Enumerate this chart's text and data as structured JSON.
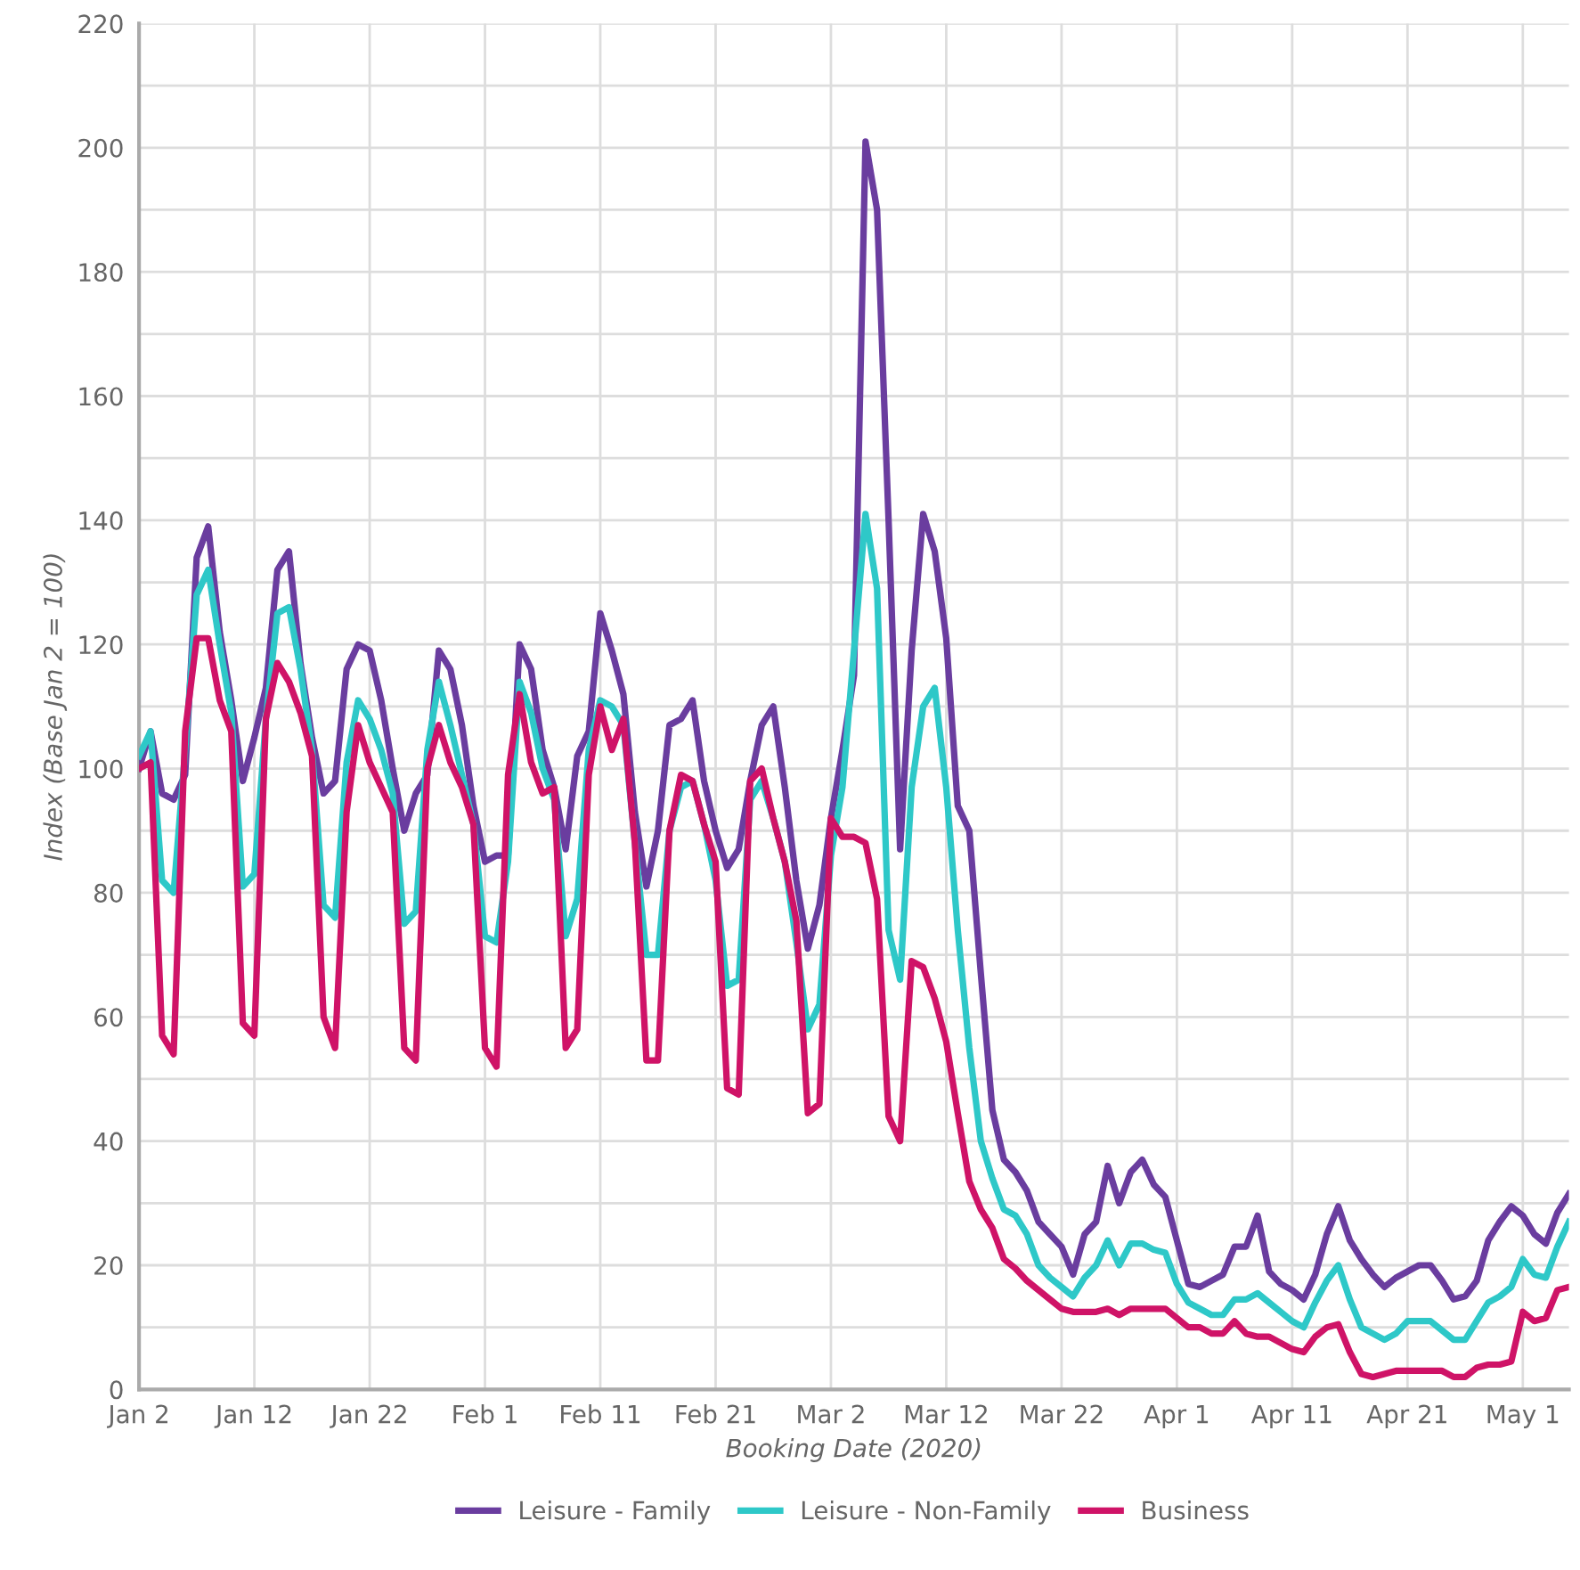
{
  "chart_data": {
    "type": "line",
    "xlabel": "Booking Date (2020)",
    "ylabel": "Index (Base Jan 2 = 100)",
    "x": [
      "2020-01-02",
      "2020-01-03",
      "2020-01-04",
      "2020-01-05",
      "2020-01-06",
      "2020-01-07",
      "2020-01-08",
      "2020-01-09",
      "2020-01-10",
      "2020-01-11",
      "2020-01-12",
      "2020-01-13",
      "2020-01-14",
      "2020-01-15",
      "2020-01-16",
      "2020-01-17",
      "2020-01-18",
      "2020-01-19",
      "2020-01-20",
      "2020-01-21",
      "2020-01-22",
      "2020-01-23",
      "2020-01-24",
      "2020-01-25",
      "2020-01-26",
      "2020-01-27",
      "2020-01-28",
      "2020-01-29",
      "2020-01-30",
      "2020-01-31",
      "2020-02-01",
      "2020-02-02",
      "2020-02-03",
      "2020-02-04",
      "2020-02-05",
      "2020-02-06",
      "2020-02-07",
      "2020-02-08",
      "2020-02-09",
      "2020-02-10",
      "2020-02-11",
      "2020-02-12",
      "2020-02-13",
      "2020-02-14",
      "2020-02-15",
      "2020-02-16",
      "2020-02-17",
      "2020-02-18",
      "2020-02-19",
      "2020-02-20",
      "2020-02-21",
      "2020-02-22",
      "2020-02-23",
      "2020-02-24",
      "2020-02-25",
      "2020-02-26",
      "2020-02-27",
      "2020-02-28",
      "2020-02-29",
      "2020-03-01",
      "2020-03-02",
      "2020-03-03",
      "2020-03-04",
      "2020-03-05",
      "2020-03-06",
      "2020-03-07",
      "2020-03-08",
      "2020-03-09",
      "2020-03-10",
      "2020-03-11",
      "2020-03-12",
      "2020-03-13",
      "2020-03-14",
      "2020-03-15",
      "2020-03-16",
      "2020-03-17",
      "2020-03-18",
      "2020-03-19",
      "2020-03-20",
      "2020-03-21",
      "2020-03-22",
      "2020-03-23",
      "2020-03-24",
      "2020-03-25",
      "2020-03-26",
      "2020-03-27",
      "2020-03-28",
      "2020-03-29",
      "2020-03-30",
      "2020-03-31",
      "2020-04-01",
      "2020-04-02",
      "2020-04-03",
      "2020-04-04",
      "2020-04-05",
      "2020-04-06",
      "2020-04-07",
      "2020-04-08",
      "2020-04-09",
      "2020-04-10",
      "2020-04-11",
      "2020-04-12",
      "2020-04-13",
      "2020-04-14",
      "2020-04-15",
      "2020-04-16",
      "2020-04-17",
      "2020-04-18",
      "2020-04-19",
      "2020-04-20",
      "2020-04-21",
      "2020-04-22",
      "2020-04-23",
      "2020-04-24",
      "2020-04-25",
      "2020-04-26",
      "2020-04-27",
      "2020-04-28",
      "2020-04-29",
      "2020-04-30",
      "2020-05-01",
      "2020-05-02",
      "2020-05-03",
      "2020-05-04",
      "2020-05-05"
    ],
    "series": [
      {
        "name": "Leisure - Family",
        "color": "#6a3d9f",
        "values": [
          100,
          106,
          96,
          95,
          99,
          134,
          139,
          122,
          111,
          98,
          105,
          113,
          132,
          135,
          117,
          105,
          96,
          98,
          116,
          120,
          119,
          111,
          100,
          90,
          96,
          99,
          119,
          116,
          107,
          94,
          85,
          86,
          86,
          120,
          116,
          103,
          97,
          87,
          102,
          106,
          125,
          119,
          112,
          93,
          81,
          90,
          107,
          108,
          111,
          98,
          90,
          84,
          87,
          98,
          107,
          110,
          97,
          82,
          71,
          78,
          92,
          103,
          115,
          201,
          190,
          140,
          87,
          119,
          141,
          135,
          121,
          94,
          90,
          67,
          45,
          37,
          35,
          32,
          27,
          25,
          23,
          18.5,
          25,
          27,
          36,
          30,
          35,
          37,
          33,
          31,
          24,
          17,
          16.5,
          17.5,
          18.5,
          23,
          23,
          28,
          19,
          17,
          16,
          14.5,
          18.5,
          25,
          29.5,
          24,
          21,
          18.5,
          16.5,
          18,
          19,
          20,
          20,
          17.5,
          14.5,
          15,
          17.5,
          24,
          27,
          29.5,
          28,
          25,
          23.5,
          28.5,
          31.5
        ]
      },
      {
        "name": "Leisure - Non-Family",
        "color": "#2ec8c8",
        "values": [
          102,
          106,
          82,
          80,
          103,
          128,
          132,
          120,
          109,
          81,
          83,
          108,
          125,
          126,
          116,
          103,
          78,
          76,
          101,
          111,
          108,
          103,
          96,
          75,
          77,
          103,
          114,
          107,
          99,
          91,
          73,
          72,
          85,
          114,
          109,
          100,
          95,
          73,
          79,
          103,
          111,
          110,
          107,
          88,
          70,
          70,
          90,
          97,
          98,
          91,
          82,
          65,
          66,
          95,
          98,
          92,
          85,
          72,
          58,
          62,
          86,
          97,
          119,
          141,
          129,
          74,
          66,
          97,
          110,
          113,
          97,
          74,
          55,
          40,
          34,
          29,
          28,
          25,
          20,
          18,
          16.5,
          15,
          18,
          20,
          24,
          20,
          23.5,
          23.5,
          22.5,
          22,
          17,
          14,
          13,
          12,
          12,
          14.5,
          14.5,
          15.5,
          14,
          12.5,
          11,
          10,
          14,
          17.5,
          20,
          14.5,
          10,
          9,
          8,
          9,
          11,
          11,
          11,
          9.5,
          8,
          8,
          11,
          14,
          15,
          16.5,
          21,
          18.5,
          18,
          23,
          27
        ]
      },
      {
        "name": "Business",
        "color": "#cf1367",
        "values": [
          100,
          101,
          57,
          54,
          106,
          121,
          121,
          111,
          106,
          59,
          57,
          108,
          117,
          114,
          109,
          102,
          60,
          55,
          93,
          107,
          101,
          97,
          93,
          55,
          53,
          100,
          107,
          101,
          97,
          91,
          55,
          52,
          99,
          112,
          101,
          96,
          97,
          55,
          58,
          99,
          110,
          103,
          108,
          88,
          53,
          53,
          90,
          99,
          98,
          91,
          85,
          48.5,
          47.5,
          98,
          100,
          92,
          85,
          75.5,
          44.5,
          46,
          92,
          89,
          89,
          88,
          79,
          44,
          40,
          69,
          68,
          63,
          56,
          44.5,
          33.5,
          29,
          26,
          21,
          19.5,
          17.5,
          16,
          14.5,
          13,
          12.5,
          12.5,
          12.5,
          13,
          12,
          13,
          13,
          13,
          13,
          11.5,
          10,
          10,
          9,
          9,
          11,
          9,
          8.5,
          8.5,
          7.5,
          6.5,
          6,
          8.5,
          10,
          10.5,
          6,
          2.5,
          2,
          2.5,
          3,
          3,
          3,
          3,
          3,
          2,
          2,
          3.5,
          4,
          4,
          4.5,
          12.5,
          11,
          11.5,
          16,
          16.5
        ]
      }
    ],
    "xlim": [
      "2020-01-02",
      "2020-05-05"
    ],
    "xticks": [
      {
        "value": "2020-01-02",
        "label": "Jan 2"
      },
      {
        "value": "2020-01-12",
        "label": "Jan 12"
      },
      {
        "value": "2020-01-22",
        "label": "Jan 22"
      },
      {
        "value": "2020-02-01",
        "label": "Feb 1"
      },
      {
        "value": "2020-02-11",
        "label": "Feb 11"
      },
      {
        "value": "2020-02-21",
        "label": "Feb 21"
      },
      {
        "value": "2020-03-02",
        "label": "Mar 2"
      },
      {
        "value": "2020-03-12",
        "label": "Mar 12"
      },
      {
        "value": "2020-03-22",
        "label": "Mar 22"
      },
      {
        "value": "2020-04-01",
        "label": "Apr 1"
      },
      {
        "value": "2020-04-11",
        "label": "Apr 11"
      },
      {
        "value": "2020-04-21",
        "label": "Apr 21"
      },
      {
        "value": "2020-05-01",
        "label": "May 1"
      }
    ],
    "ylim": [
      0,
      220
    ],
    "yticks": [
      0,
      {
        "value": 10,
        "label": null
      },
      20,
      {
        "value": 30,
        "label": null
      },
      40,
      {
        "value": 50,
        "label": null
      },
      60,
      {
        "value": 70,
        "label": null
      },
      80,
      {
        "value": 90,
        "label": null
      },
      100,
      {
        "value": 110,
        "label": null
      },
      120,
      {
        "value": 130,
        "label": null
      },
      140,
      {
        "value": 150,
        "label": null
      },
      160,
      {
        "value": 170,
        "label": null
      },
      180,
      {
        "value": 190,
        "label": null
      },
      200,
      {
        "value": 210,
        "label": null
      },
      220
    ],
    "grid": true,
    "legend": "bottom",
    "marker": "none",
    "line_style": "solid"
  }
}
